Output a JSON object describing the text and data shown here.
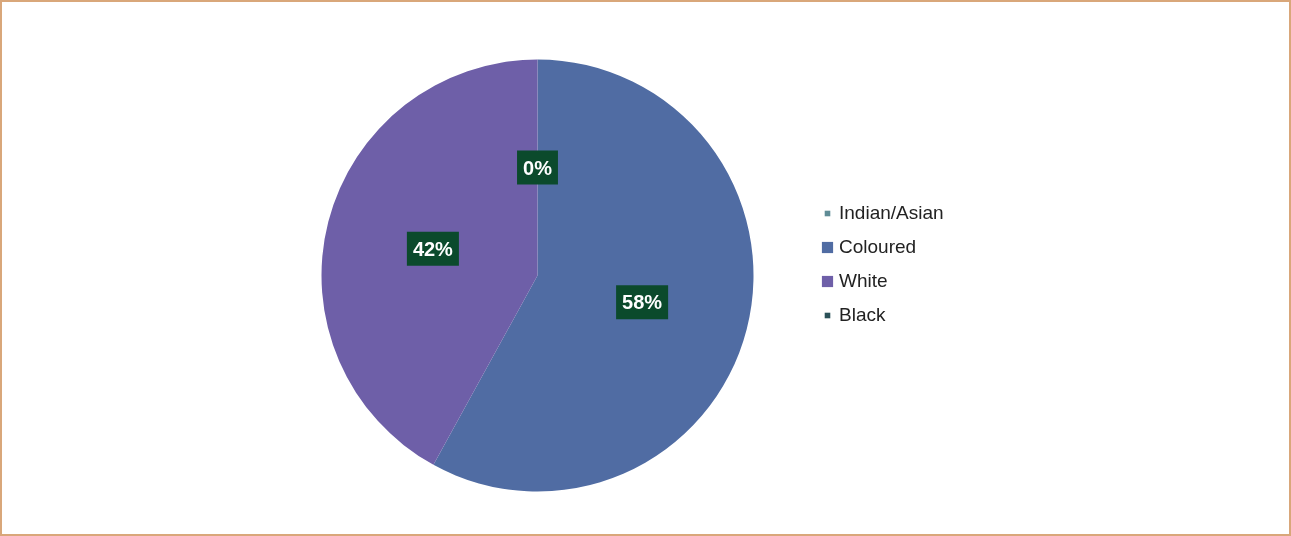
{
  "chart_data": {
    "type": "pie",
    "categories": [
      "Indian/Asian",
      "Coloured",
      "White",
      "Black"
    ],
    "values": [
      0,
      58,
      42,
      0
    ],
    "colors": [
      "#5f8c96",
      "#506ca3",
      "#6e5fa8",
      "#2b5158"
    ],
    "value_labels": [
      "0%",
      "58%",
      "42%",
      null
    ],
    "legend": "right"
  }
}
